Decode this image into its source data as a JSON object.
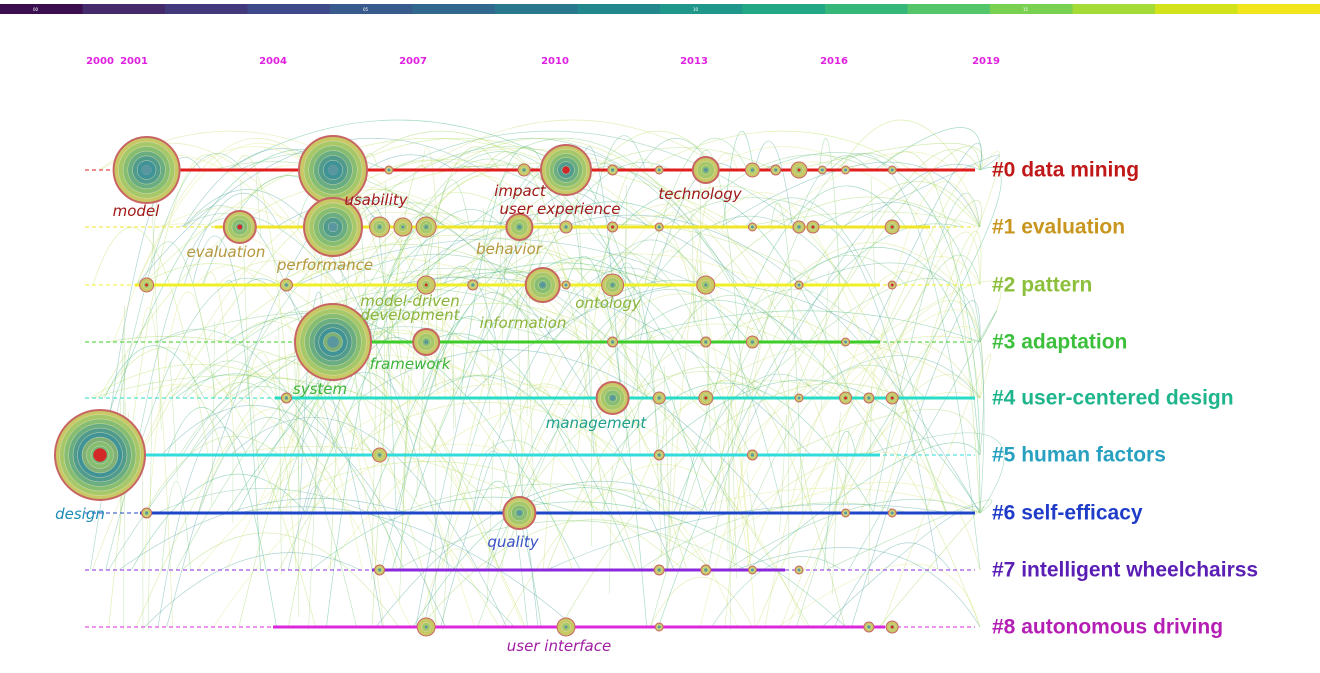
{
  "color_scale": {
    "colors": [
      "#3b0f4f",
      "#452a6c",
      "#433a7d",
      "#3e4a89",
      "#385a8c",
      "#31698e",
      "#2a788e",
      "#23888e",
      "#1f978b",
      "#22a884",
      "#35b779",
      "#54c568",
      "#7ad151",
      "#a5db36",
      "#d2e21b",
      "#f1e51d"
    ],
    "tick_labels": [
      "00",
      "05",
      "10",
      "15"
    ]
  },
  "years": [
    "2000",
    "2001",
    "2004",
    "2007",
    "2010",
    "2013",
    "2016",
    "2019"
  ],
  "clusters": [
    {
      "label": "#0 data mining",
      "color": "#c01818"
    },
    {
      "label": "#1 evaluation",
      "color": "#c8961e"
    },
    {
      "label": "#2 pattern",
      "color": "#8cc03c"
    },
    {
      "label": "#3 adaptation",
      "color": "#3cc03c"
    },
    {
      "label": "#4 user-centered design",
      "color": "#1eb48c"
    },
    {
      "label": "#5 human factors",
      "color": "#28a0c0"
    },
    {
      "label": "#6 self-efficacy",
      "color": "#1e3cc8"
    },
    {
      "label": "#7 intelligent wheelchairss",
      "color": "#5a1eb4"
    },
    {
      "label": "#8 autonomous driving",
      "color": "#b41eb4"
    }
  ],
  "keywords": [
    {
      "text": "model",
      "color": "#a01818"
    },
    {
      "text": "usability",
      "color": "#a01818"
    },
    {
      "text": "impact",
      "color": "#a01818"
    },
    {
      "text": "user experience",
      "color": "#a01818"
    },
    {
      "text": "technology",
      "color": "#a01818"
    },
    {
      "text": "evaluation",
      "color": "#b4963c"
    },
    {
      "text": "performance",
      "color": "#b4963c"
    },
    {
      "text": "behavior",
      "color": "#b4963c"
    },
    {
      "text": "model-driven",
      "color": "#8cb43c"
    },
    {
      "text": "development",
      "color": "#8cb43c"
    },
    {
      "text": "information",
      "color": "#8cb43c"
    },
    {
      "text": "ontology",
      "color": "#8cb43c"
    },
    {
      "text": "framework",
      "color": "#3cb43c"
    },
    {
      "text": "system",
      "color": "#3cb43c"
    },
    {
      "text": "management",
      "color": "#1ea08c"
    },
    {
      "text": "design",
      "color": "#1e8cb4"
    },
    {
      "text": "quality",
      "color": "#3c50c8"
    },
    {
      "text": "user interface",
      "color": "#a01ea0"
    }
  ]
}
